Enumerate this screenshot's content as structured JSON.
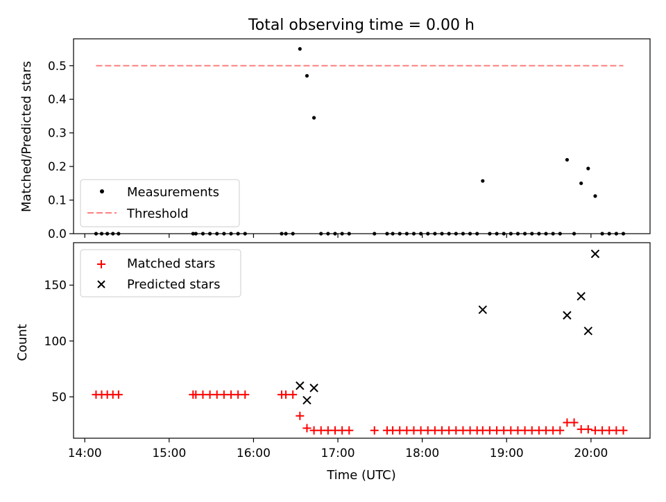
{
  "figure": {
    "title": "Total observing time = 0.00 h",
    "xlabel": "Time (UTC)"
  },
  "colors": {
    "measurement": "#000000",
    "threshold": "#ff7f7f",
    "matched": "#ff0000",
    "predicted": "#000000"
  },
  "chart_data": [
    {
      "type": "scatter",
      "title": "Total observing time = 0.00 h",
      "ylabel": "Matched/Predicted stars",
      "xlabel": "",
      "x_unit": "time (UTC)",
      "xlim": [
        "13:52",
        "20:42"
      ],
      "ylim": [
        0,
        0.58
      ],
      "yticks": [
        0.0,
        0.1,
        0.2,
        0.3,
        0.4,
        0.5
      ],
      "ytick_labels": [
        "0.0",
        "0.1",
        "0.2",
        "0.3",
        "0.4",
        "0.5"
      ],
      "grid": false,
      "legend_position": "lower-left",
      "series": [
        {
          "name": "Measurements",
          "marker": "dot",
          "points": [
            [
              "14:08",
              0
            ],
            [
              "14:12",
              0
            ],
            [
              "14:16",
              0
            ],
            [
              "14:20",
              0
            ],
            [
              "14:24",
              0
            ],
            [
              "15:17",
              0
            ],
            [
              "15:19",
              0
            ],
            [
              "15:24",
              0
            ],
            [
              "15:29",
              0
            ],
            [
              "15:34",
              0
            ],
            [
              "15:39",
              0
            ],
            [
              "15:44",
              0
            ],
            [
              "15:49",
              0
            ],
            [
              "15:54",
              0
            ],
            [
              "16:20",
              0
            ],
            [
              "16:23",
              0
            ],
            [
              "16:28",
              0
            ],
            [
              "16:33",
              0.55
            ],
            [
              "16:38",
              0.47
            ],
            [
              "16:43",
              0.345
            ],
            [
              "16:48",
              0
            ],
            [
              "16:53",
              0
            ],
            [
              "16:58",
              0
            ],
            [
              "17:03",
              0
            ],
            [
              "17:08",
              0
            ],
            [
              "17:26",
              0
            ],
            [
              "17:35",
              0
            ],
            [
              "17:39",
              0
            ],
            [
              "17:44",
              0
            ],
            [
              "17:49",
              0
            ],
            [
              "17:54",
              0
            ],
            [
              "17:59",
              0
            ],
            [
              "18:04",
              0
            ],
            [
              "18:09",
              0
            ],
            [
              "18:14",
              0
            ],
            [
              "18:19",
              0
            ],
            [
              "18:24",
              0
            ],
            [
              "18:29",
              0
            ],
            [
              "18:34",
              0
            ],
            [
              "18:39",
              0
            ],
            [
              "18:43",
              0.157
            ],
            [
              "18:48",
              0
            ],
            [
              "18:53",
              0
            ],
            [
              "18:58",
              0
            ],
            [
              "19:03",
              0
            ],
            [
              "19:08",
              0
            ],
            [
              "19:13",
              0
            ],
            [
              "19:18",
              0
            ],
            [
              "19:23",
              0
            ],
            [
              "19:28",
              0
            ],
            [
              "19:33",
              0
            ],
            [
              "19:38",
              0
            ],
            [
              "19:43",
              0.22
            ],
            [
              "19:48",
              0
            ],
            [
              "19:53",
              0.15
            ],
            [
              "19:58",
              0.194
            ],
            [
              "20:03",
              0.112
            ],
            [
              "20:08",
              0
            ],
            [
              "20:13",
              0
            ],
            [
              "20:18",
              0
            ],
            [
              "20:23",
              0
            ]
          ]
        },
        {
          "name": "Threshold",
          "marker": "dashed-line",
          "points": [
            [
              "14:08",
              0.5
            ],
            [
              "20:23",
              0.5
            ]
          ]
        }
      ]
    },
    {
      "type": "scatter",
      "title": "",
      "ylabel": "Count",
      "xlabel": "Time (UTC)",
      "x_unit": "time (UTC)",
      "xlim": [
        "13:52",
        "20:42"
      ],
      "ylim": [
        13,
        188
      ],
      "yticks": [
        50,
        100,
        150
      ],
      "ytick_labels": [
        "50",
        "100",
        "150"
      ],
      "xticks": [
        "14:00",
        "15:00",
        "16:00",
        "17:00",
        "18:00",
        "19:00",
        "20:00"
      ],
      "xtick_labels": [
        "14:00",
        "15:00",
        "16:00",
        "17:00",
        "18:00",
        "19:00",
        "20:00"
      ],
      "grid": false,
      "legend_position": "top-left",
      "series": [
        {
          "name": "Matched stars",
          "marker": "plus",
          "points": [
            [
              "14:08",
              52
            ],
            [
              "14:12",
              52
            ],
            [
              "14:16",
              52
            ],
            [
              "14:20",
              52
            ],
            [
              "14:24",
              52
            ],
            [
              "15:17",
              52
            ],
            [
              "15:19",
              52
            ],
            [
              "15:24",
              52
            ],
            [
              "15:29",
              52
            ],
            [
              "15:34",
              52
            ],
            [
              "15:39",
              52
            ],
            [
              "15:44",
              52
            ],
            [
              "15:49",
              52
            ],
            [
              "15:54",
              52
            ],
            [
              "16:20",
              52
            ],
            [
              "16:23",
              52
            ],
            [
              "16:28",
              52
            ],
            [
              "16:33",
              33
            ],
            [
              "16:38",
              22
            ],
            [
              "16:43",
              20
            ],
            [
              "16:48",
              20
            ],
            [
              "16:53",
              20
            ],
            [
              "16:58",
              20
            ],
            [
              "17:03",
              20
            ],
            [
              "17:08",
              20
            ],
            [
              "17:26",
              20
            ],
            [
              "17:35",
              20
            ],
            [
              "17:39",
              20
            ],
            [
              "17:44",
              20
            ],
            [
              "17:49",
              20
            ],
            [
              "17:54",
              20
            ],
            [
              "17:59",
              20
            ],
            [
              "18:04",
              20
            ],
            [
              "18:09",
              20
            ],
            [
              "18:14",
              20
            ],
            [
              "18:19",
              20
            ],
            [
              "18:24",
              20
            ],
            [
              "18:29",
              20
            ],
            [
              "18:34",
              20
            ],
            [
              "18:39",
              20
            ],
            [
              "18:43",
              20
            ],
            [
              "18:48",
              20
            ],
            [
              "18:53",
              20
            ],
            [
              "18:58",
              20
            ],
            [
              "19:03",
              20
            ],
            [
              "19:08",
              20
            ],
            [
              "19:13",
              20
            ],
            [
              "19:18",
              20
            ],
            [
              "19:23",
              20
            ],
            [
              "19:28",
              20
            ],
            [
              "19:33",
              20
            ],
            [
              "19:38",
              20
            ],
            [
              "19:43",
              27
            ],
            [
              "19:48",
              27
            ],
            [
              "19:53",
              21
            ],
            [
              "19:58",
              21
            ],
            [
              "20:03",
              20
            ],
            [
              "20:08",
              20
            ],
            [
              "20:13",
              20
            ],
            [
              "20:18",
              20
            ],
            [
              "20:23",
              20
            ]
          ]
        },
        {
          "name": "Predicted stars",
          "marker": "x",
          "points": [
            [
              "16:33",
              60
            ],
            [
              "16:38",
              47
            ],
            [
              "16:43",
              58
            ],
            [
              "18:43",
              128
            ],
            [
              "19:43",
              123
            ],
            [
              "19:53",
              140
            ],
            [
              "19:58",
              109
            ],
            [
              "20:03",
              178
            ]
          ]
        }
      ]
    }
  ]
}
